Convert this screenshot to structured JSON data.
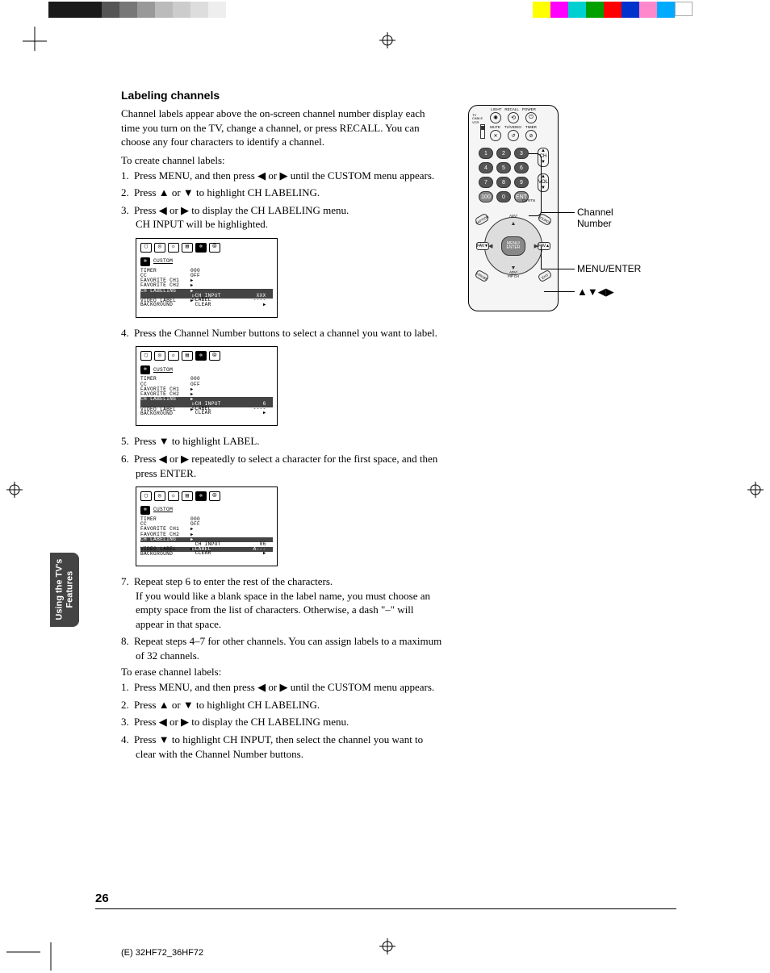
{
  "meta": {
    "page_number": "26",
    "footer": "(E) 32HF72_36HF72",
    "side_tab": "Using the TV's\nFeatures"
  },
  "heading": "Labeling channels",
  "intro": "Channel labels appear above the on-screen channel number display each time you turn on the TV, change a channel, or press RECALL. You can choose any four characters to identify a channel.",
  "create_lead": "To create channel labels:",
  "steps_create": {
    "s1_pre": "Press MENU, and then press ",
    "s1_post": " until the CUSTOM menu appears.",
    "s2_pre": "Press ",
    "s2_post": " to highlight CH LABELING.",
    "s3_pre": "Press ",
    "s3_mid": " to display the CH LABELING menu.",
    "s3_line2": "CH INPUT will be highlighted.",
    "s4": "Press the Channel Number buttons to select a channel you want to label.",
    "s5_pre": "Press ",
    "s5_post": " to highlight LABEL.",
    "s6_pre": "Press ",
    "s6_post": " repeatedly to select a character for the first space, and then press ENTER.",
    "s7a": "Repeat step 6 to enter the rest of the characters.",
    "s7b": "If you would like a blank space in the label name, you must choose an empty space from the list of characters. Otherwise, a dash \"–\" will appear in that space.",
    "s8": "Repeat steps 4–7 for other channels. You can assign labels to a maximum of 32 channels."
  },
  "erase_lead": "To erase channel labels:",
  "steps_erase": {
    "e1_pre": "Press MENU, and then press ",
    "e1_post": " until the CUSTOM menu appears.",
    "e2_pre": "Press ",
    "e2_post": " to highlight CH LABELING.",
    "e3_pre": "Press ",
    "e3_post": " to display the CH LABELING menu.",
    "e4_pre": "Press ",
    "e4_post": " to highlight CH INPUT, then select the channel you want to clear with the Channel Number buttons."
  },
  "glyphs": {
    "left": "◀",
    "right": "▶",
    "up": "▲",
    "down": "▼",
    "or": " or ",
    "arrows4": "▲▼◀▶"
  },
  "osd": {
    "title": "CUSTOM",
    "rows": {
      "timer": "TIMER",
      "timer_v": "000",
      "cc": "CC",
      "cc_v": "OFF",
      "fav1": "FAVORITE CH1",
      "fav2": "FAVORITE CH2",
      "chlabel": "CH LABELING",
      "video": "VIDEO LABEL",
      "bg": "BACKGROUND"
    },
    "sub": {
      "ch_input": "CH INPUT",
      "label": "LABEL",
      "clear": "CLEAR"
    },
    "screen1_ch": "XXX",
    "screen1_lbl": "----",
    "screen2_ch": "  6",
    "screen2_lbl": "----",
    "screen3_ch": " 06",
    "screen3_lbl": "A---"
  },
  "remote": {
    "top_labels": [
      "LIGHT",
      "RECALL",
      "POWER"
    ],
    "row2_labels": [
      "MUTE",
      "TV/VIDEO",
      "TIMER"
    ],
    "switch_labels": [
      "TV",
      "CABLE",
      "VCR"
    ],
    "numpad": [
      "1",
      "2",
      "3",
      "4",
      "5",
      "6",
      "7",
      "8",
      "9",
      "100",
      "0",
      "ENT"
    ],
    "ch": "CH",
    "vol": "VOL",
    "chrtn": "CH RTN",
    "adv": "ADV/\nPIP CH",
    "menu": "MENU/\nENTER",
    "fav": "FAV",
    "corner": [
      "CAPTION",
      "SOURCE",
      "STROBE",
      "EXIT"
    ]
  },
  "callouts": {
    "ch_num": "Channel\nNumber",
    "menu": "MENU/ENTER"
  },
  "colorbars": {
    "top_left": [
      "#1a1a1a",
      "#1a1a1a",
      "#1a1a1a",
      "#555",
      "#777",
      "#999",
      "#bbb",
      "#ccc",
      "#ddd",
      "#eee"
    ],
    "top_right": [
      "#ffff00",
      "#ff00ff",
      "#00d0d0",
      "#00a000",
      "#ff0000",
      "#0033cc",
      "#ff88cc",
      "#00aaff",
      "#ffffff"
    ]
  }
}
